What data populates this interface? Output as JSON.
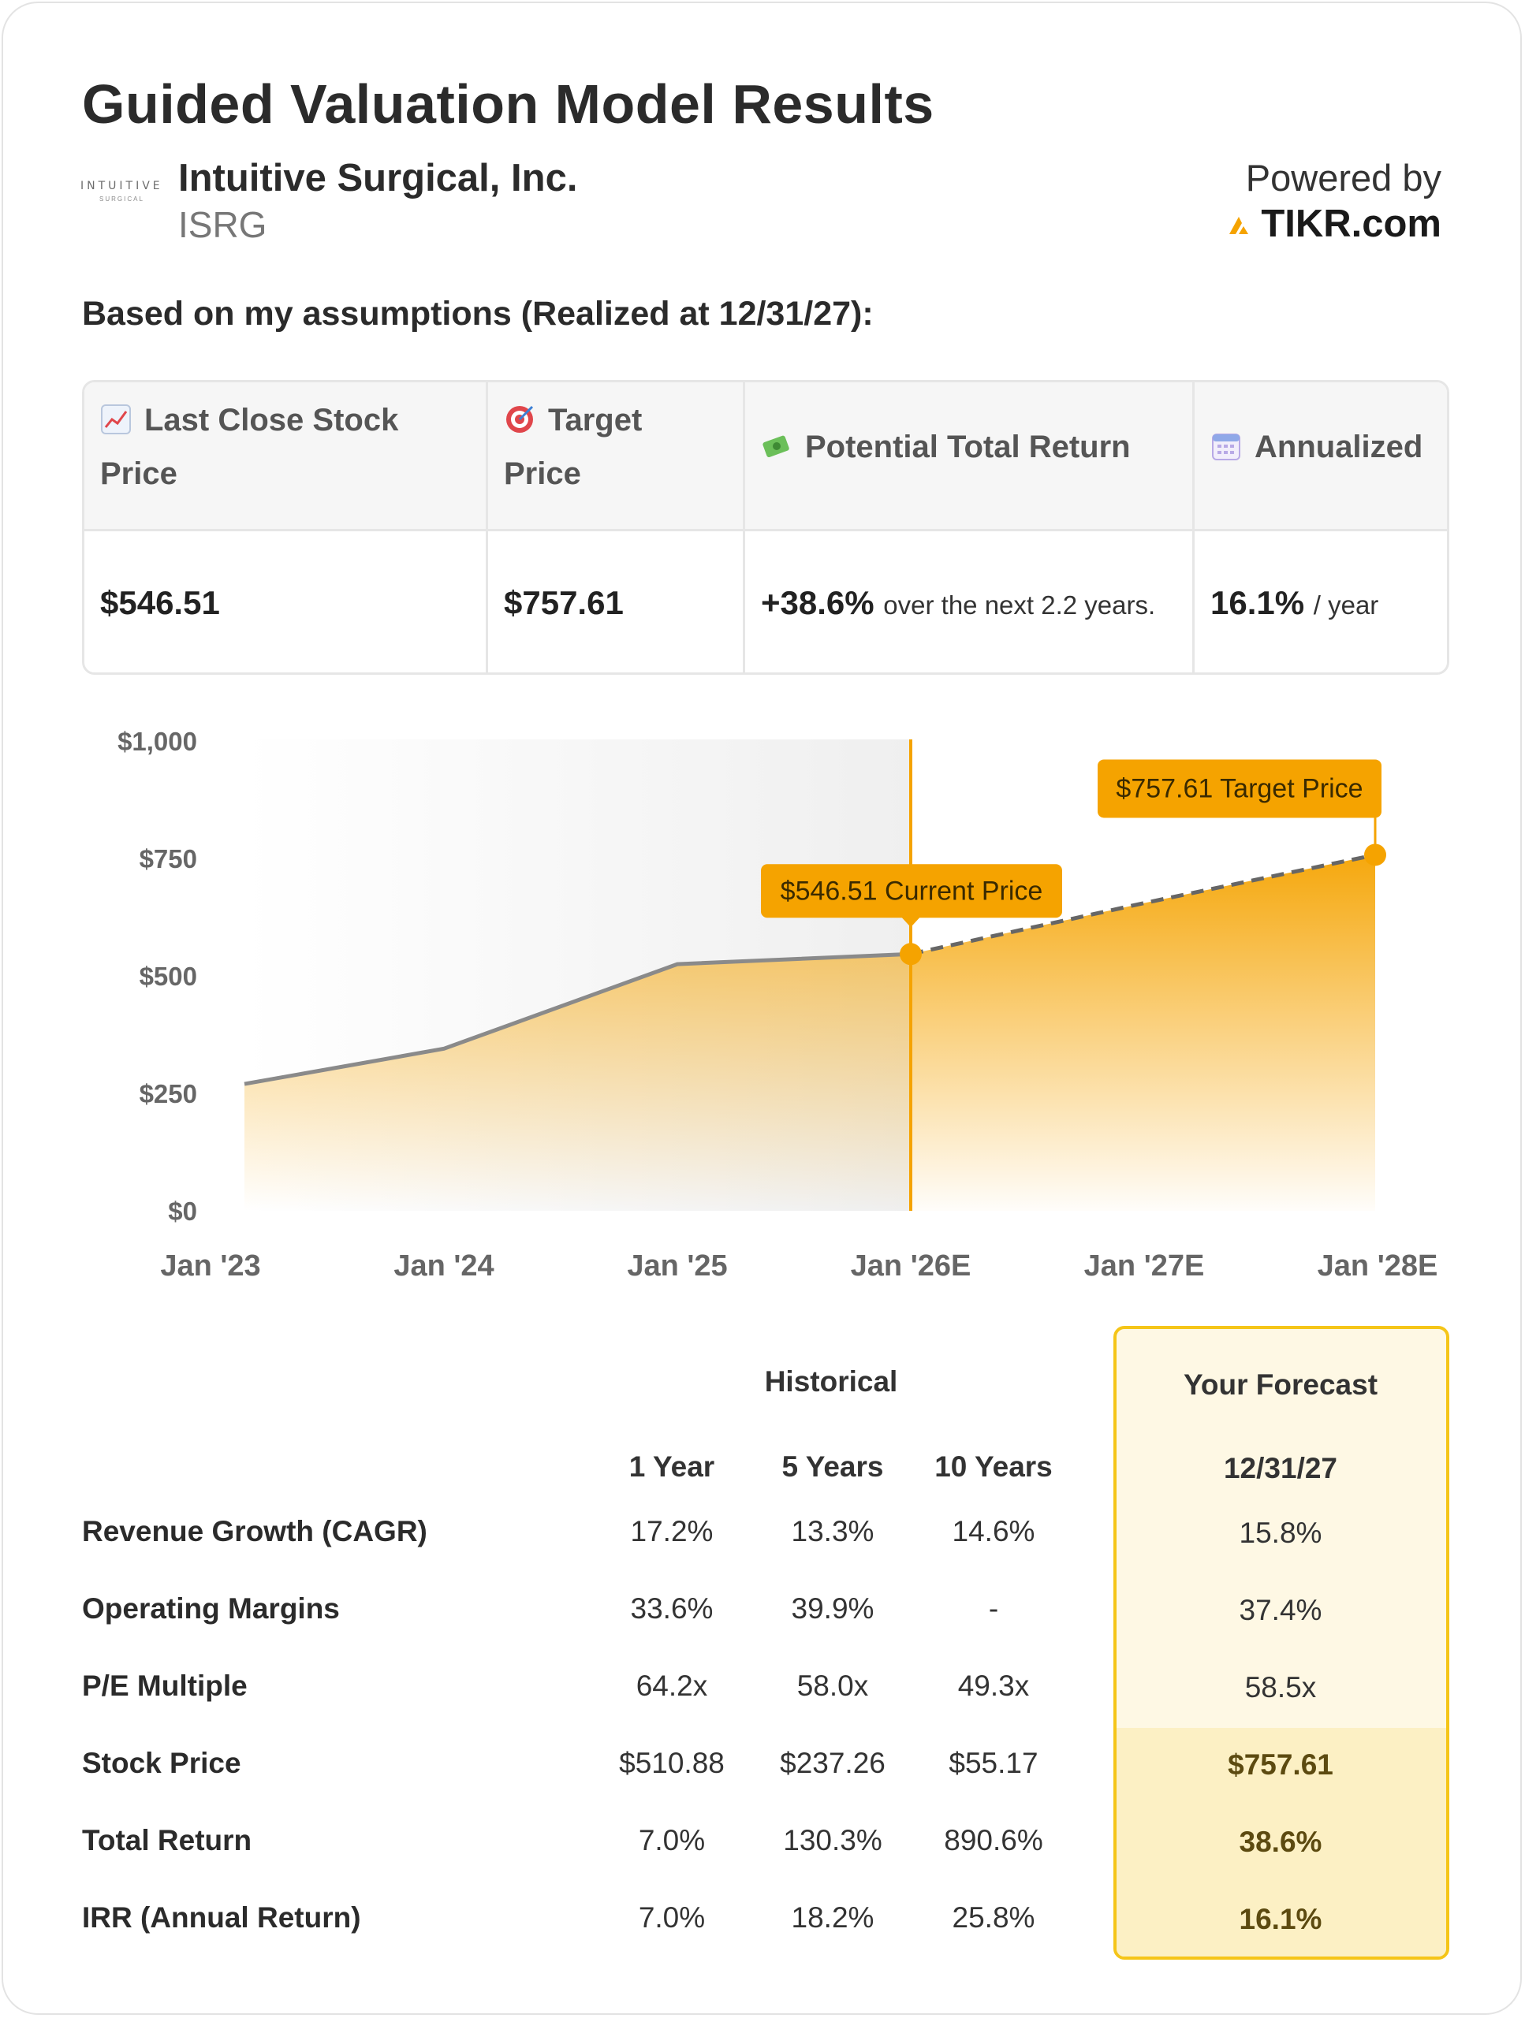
{
  "title": "Guided Valuation Model Results",
  "company": {
    "logo_text_top": "INTUITIVE",
    "logo_text_bottom": "SURGICAL",
    "name": "Intuitive Surgical, Inc.",
    "ticker": "ISRG"
  },
  "powered": {
    "label": "Powered by",
    "brand": "TIKR.com",
    "brand_color": "#f5a300"
  },
  "assumptions_heading": "Based on my assumptions (Realized at 12/31/27):",
  "summary": {
    "headers": [
      {
        "icon": "chart-up-icon",
        "line1": "Last Close Stock",
        "line2": "Price"
      },
      {
        "icon": "target-icon",
        "line1": "Target",
        "line2": "Price"
      },
      {
        "icon": "money-icon",
        "line1": "Potential Total Return",
        "line2": ""
      },
      {
        "icon": "calendar-icon",
        "line1": "Annualized",
        "line2": ""
      }
    ],
    "last_close": "$546.51",
    "target": "$757.61",
    "total_return": "+38.6%",
    "total_return_note": "over the next 2.2 years.",
    "annualized": "16.1%",
    "annualized_note": "/ year"
  },
  "chart_data": {
    "type": "area",
    "x_tick_labels": [
      "Jan '23",
      "Jan '24",
      "Jan '25",
      "Jan '26E",
      "Jan '27E",
      "Jan '28E"
    ],
    "y_tick_labels": [
      "$1,000",
      "$750",
      "$500",
      "$250",
      "$0"
    ],
    "ylim": [
      0,
      1000
    ],
    "historical": [
      {
        "x": "Jan '23",
        "y": 270
      },
      {
        "x": "Jan '24",
        "y": 345
      },
      {
        "x": "Jan '25",
        "y": 525
      },
      {
        "x": "Jan '26E",
        "y": 546.51
      }
    ],
    "forecast": [
      {
        "x": "Jan '26E",
        "y": 546.51
      },
      {
        "x": "Jan '27E",
        "y": 655
      },
      {
        "x": "Jan '28E",
        "y": 757.61
      }
    ],
    "current_label": "$546.51 Current Price",
    "target_label": "$757.61 Target Price",
    "accent_color": "#f5a300",
    "line_color": "#8a8a8a"
  },
  "metrics": {
    "historical_label": "Historical",
    "forecast_label": "Your Forecast",
    "columns": [
      "1 Year",
      "5 Years",
      "10 Years"
    ],
    "forecast_date": "12/31/27",
    "rows": [
      {
        "label": "Revenue Growth (CAGR)",
        "values": [
          "17.2%",
          "13.3%",
          "14.6%"
        ],
        "forecast": "15.8%"
      },
      {
        "label": "Operating Margins",
        "values": [
          "33.6%",
          "39.9%",
          "-"
        ],
        "forecast": "37.4%"
      },
      {
        "label": "P/E Multiple",
        "values": [
          "64.2x",
          "58.0x",
          "49.3x"
        ],
        "forecast": "58.5x"
      },
      {
        "label": "Stock Price",
        "values": [
          "$510.88",
          "$237.26",
          "$55.17"
        ],
        "forecast": "$757.61"
      },
      {
        "label": "Total Return",
        "values": [
          "7.0%",
          "130.3%",
          "890.6%"
        ],
        "forecast": "38.6%"
      },
      {
        "label": "IRR (Annual Return)",
        "values": [
          "7.0%",
          "18.2%",
          "25.8%"
        ],
        "forecast": "16.1%"
      }
    ]
  }
}
